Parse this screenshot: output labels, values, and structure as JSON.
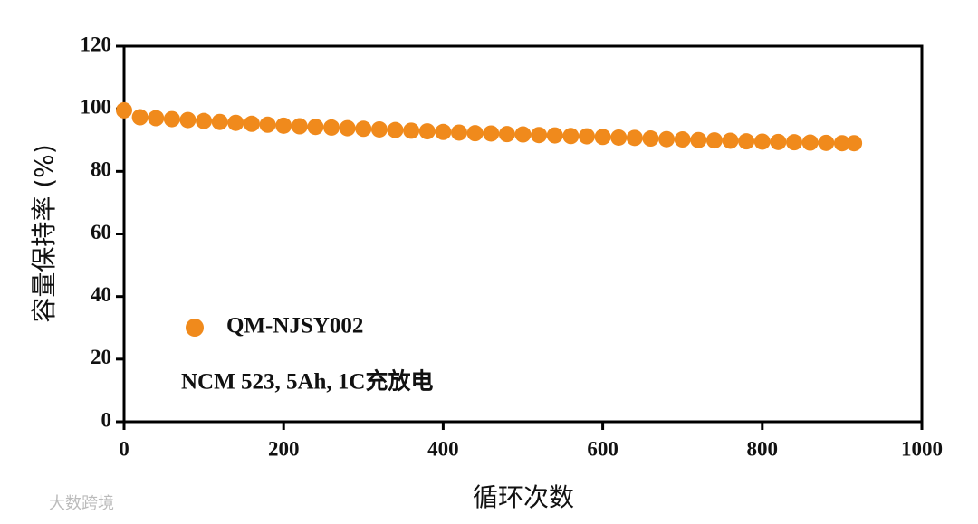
{
  "chart_data": {
    "type": "scatter",
    "xlabel": "循环次数",
    "ylabel": "容量保持率 (%)",
    "annotation": "NCM 523, 5Ah, 1C充放电",
    "xlim": [
      0,
      1000
    ],
    "xticks": [
      0,
      200,
      400,
      600,
      800,
      1000
    ],
    "ylim": [
      0,
      120
    ],
    "yticks": [
      0,
      20,
      40,
      60,
      80,
      100,
      120
    ],
    "legend": "left",
    "series": [
      {
        "name": "QM-NJSY002",
        "color": "#f08a1c",
        "x": [
          0,
          20,
          40,
          60,
          80,
          100,
          120,
          140,
          160,
          180,
          200,
          220,
          240,
          260,
          280,
          300,
          320,
          340,
          360,
          380,
          400,
          420,
          440,
          460,
          480,
          500,
          520,
          540,
          560,
          580,
          600,
          620,
          640,
          660,
          680,
          700,
          720,
          740,
          760,
          780,
          800,
          820,
          840,
          860,
          880,
          900,
          915
        ],
        "values": [
          99.5,
          97.3,
          97,
          96.7,
          96.4,
          96.1,
          95.8,
          95.5,
          95.2,
          94.9,
          94.6,
          94.4,
          94.2,
          94,
          93.8,
          93.6,
          93.4,
          93.2,
          93,
          92.8,
          92.6,
          92.4,
          92.2,
          92.1,
          91.9,
          91.8,
          91.6,
          91.5,
          91.3,
          91.2,
          91,
          90.8,
          90.7,
          90.5,
          90.3,
          90.2,
          90,
          89.9,
          89.8,
          89.6,
          89.5,
          89.4,
          89.3,
          89.2,
          89.1,
          89,
          89
        ]
      }
    ]
  },
  "watermark": "大数跨境"
}
